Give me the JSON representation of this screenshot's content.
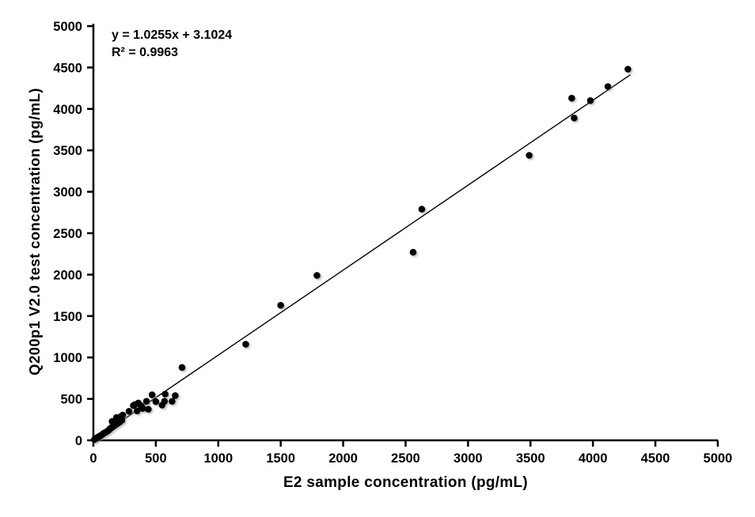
{
  "chart_data": {
    "type": "scatter",
    "title": "",
    "xlabel": "E2 sample concentration (pg/mL)",
    "ylabel": "Q200p1 V2.0 test concentration (pg/mL)",
    "xlim": [
      0,
      5000
    ],
    "ylim": [
      0,
      5000
    ],
    "xticks": [
      0,
      500,
      1000,
      1500,
      2000,
      2500,
      3000,
      3500,
      4000,
      4500,
      5000
    ],
    "yticks": [
      0,
      500,
      1000,
      1500,
      2000,
      2500,
      3000,
      3500,
      4000,
      4500,
      5000
    ],
    "grid": false,
    "legend": "none",
    "annotation": {
      "equation": "y = 1.0255x + 3.1024",
      "r_squared": "R² = 0.9963"
    },
    "trendline": {
      "slope": 1.0255,
      "intercept": 3.1024,
      "x_start": 0,
      "x_end": 4300
    },
    "marker_color": "#000000",
    "axis_color": "#000000",
    "points": [
      [
        8,
        10
      ],
      [
        15,
        18
      ],
      [
        24,
        26
      ],
      [
        32,
        34
      ],
      [
        42,
        44
      ],
      [
        52,
        52
      ],
      [
        62,
        60
      ],
      [
        72,
        72
      ],
      [
        82,
        84
      ],
      [
        92,
        92
      ],
      [
        102,
        100
      ],
      [
        112,
        110
      ],
      [
        122,
        122
      ],
      [
        132,
        136
      ],
      [
        142,
        150
      ],
      [
        152,
        160
      ],
      [
        162,
        172
      ],
      [
        172,
        182
      ],
      [
        185,
        195
      ],
      [
        198,
        208
      ],
      [
        212,
        222
      ],
      [
        228,
        242
      ],
      [
        150,
        228
      ],
      [
        185,
        275
      ],
      [
        222,
        290
      ],
      [
        235,
        305
      ],
      [
        285,
        350
      ],
      [
        350,
        355
      ],
      [
        320,
        420
      ],
      [
        330,
        430
      ],
      [
        360,
        450
      ],
      [
        380,
        420
      ],
      [
        395,
        385
      ],
      [
        425,
        470
      ],
      [
        440,
        375
      ],
      [
        470,
        550
      ],
      [
        500,
        467
      ],
      [
        550,
        425
      ],
      [
        570,
        470
      ],
      [
        575,
        558
      ],
      [
        630,
        470
      ],
      [
        655,
        540
      ],
      [
        710,
        880
      ],
      [
        1220,
        1160
      ],
      [
        1500,
        1630
      ],
      [
        1790,
        1990
      ],
      [
        2560,
        2270
      ],
      [
        2630,
        2790
      ],
      [
        3490,
        3440
      ],
      [
        3830,
        4130
      ],
      [
        3850,
        3890
      ],
      [
        3980,
        4100
      ],
      [
        4120,
        4270
      ],
      [
        4280,
        4480
      ]
    ]
  }
}
